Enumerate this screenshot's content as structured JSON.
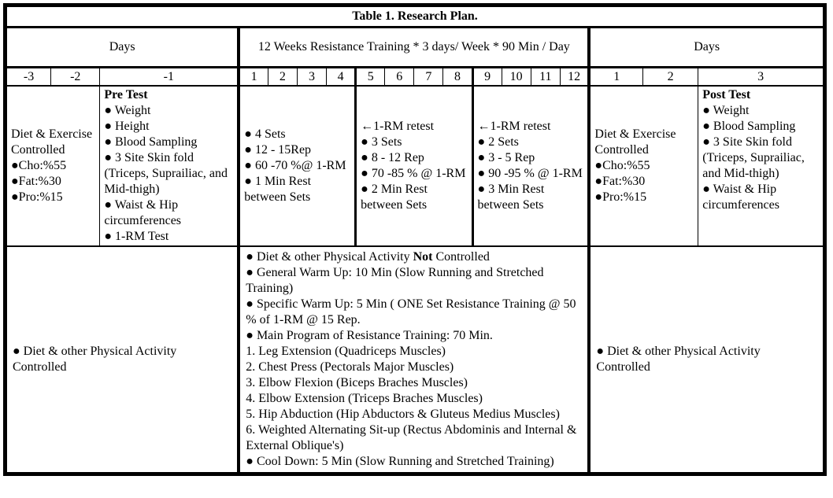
{
  "title": "Table 1. Research Plan.",
  "header": {
    "days_left": "Days",
    "training": "12 Weeks Resistance Training * 3 days/ Week * 90 Min / Day",
    "days_right": "Days"
  },
  "day_numbers": [
    "-3",
    "-2",
    "-1",
    "1",
    "2",
    "3",
    "4",
    "5",
    "6",
    "7",
    "8",
    "9",
    "10",
    "11",
    "12",
    "1",
    "2",
    "3"
  ],
  "pre_period": {
    "diet": [
      "Diet & Exercise Controlled",
      "●Cho:%55",
      "●Fat:%30",
      "●Pro:%15"
    ],
    "pre_test_title": "Pre Test",
    "pre_test_items": [
      "● Weight",
      "● Height",
      "● Blood Sampling",
      "● 3 Site Skin fold (Triceps, Suprailiac, and Mid-thigh)",
      "● Waist & Hip circumferences",
      "● 1-RM Test"
    ]
  },
  "training_blocks": {
    "weeks_1_4": [
      "● 4 Sets",
      "● 12 - 15Rep",
      "● 60 -70 %@ 1-RM",
      "● 1 Min Rest between Sets"
    ],
    "weeks_5_8": [
      "←1-RM retest",
      "● 3 Sets",
      "● 8 - 12 Rep",
      "● 70 -85 % @ 1-RM",
      "● 2 Min Rest between Sets"
    ],
    "weeks_9_12": [
      "←1-RM retest",
      "● 2 Sets",
      "● 3 - 5 Rep",
      "● 90 -95 % @ 1-RM",
      "● 3 Min Rest between Sets"
    ]
  },
  "post_period": {
    "diet": [
      "Diet & Exercise Controlled",
      "●Cho:%55",
      "●Fat:%30",
      "●Pro:%15"
    ],
    "post_test_title": "Post Test",
    "post_test_items": [
      "● Weight",
      "● Blood Sampling",
      "● 3 Site Skin fold (Triceps, Suprailiac, and Mid-thigh)",
      "● Waist & Hip circumferences"
    ]
  },
  "bottom": {
    "left": "● Diet & other Physical Activity Controlled",
    "middle_not_line": {
      "prefix": "● Diet & other Physical Activity ",
      "bold": "Not",
      "suffix": " Controlled"
    },
    "middle_items": [
      "● General Warm Up: 10 Min (Slow Running and Stretched Training)",
      "● Specific Warm Up: 5 Min ( ONE Set Resistance Training @ 50 % of 1-RM @ 15 Rep.",
      "● Main Program of Resistance Training: 70 Min.",
      "1. Leg Extension (Quadriceps Muscles)",
      "2. Chest Press (Pectorals Major Muscles)",
      "3. Elbow Flexion (Biceps Braches Muscles)",
      "4. Elbow Extension (Triceps Braches Muscles)",
      "5. Hip Abduction (Hip Abductors & Gluteus Medius Muscles)",
      "6. Weighted Alternating Sit-up (Rectus Abdominis and Internal & External Oblique's)",
      "● Cool Down: 5 Min  (Slow Running and Stretched Training)"
    ],
    "right": "● Diet & other Physical Activity Controlled"
  }
}
